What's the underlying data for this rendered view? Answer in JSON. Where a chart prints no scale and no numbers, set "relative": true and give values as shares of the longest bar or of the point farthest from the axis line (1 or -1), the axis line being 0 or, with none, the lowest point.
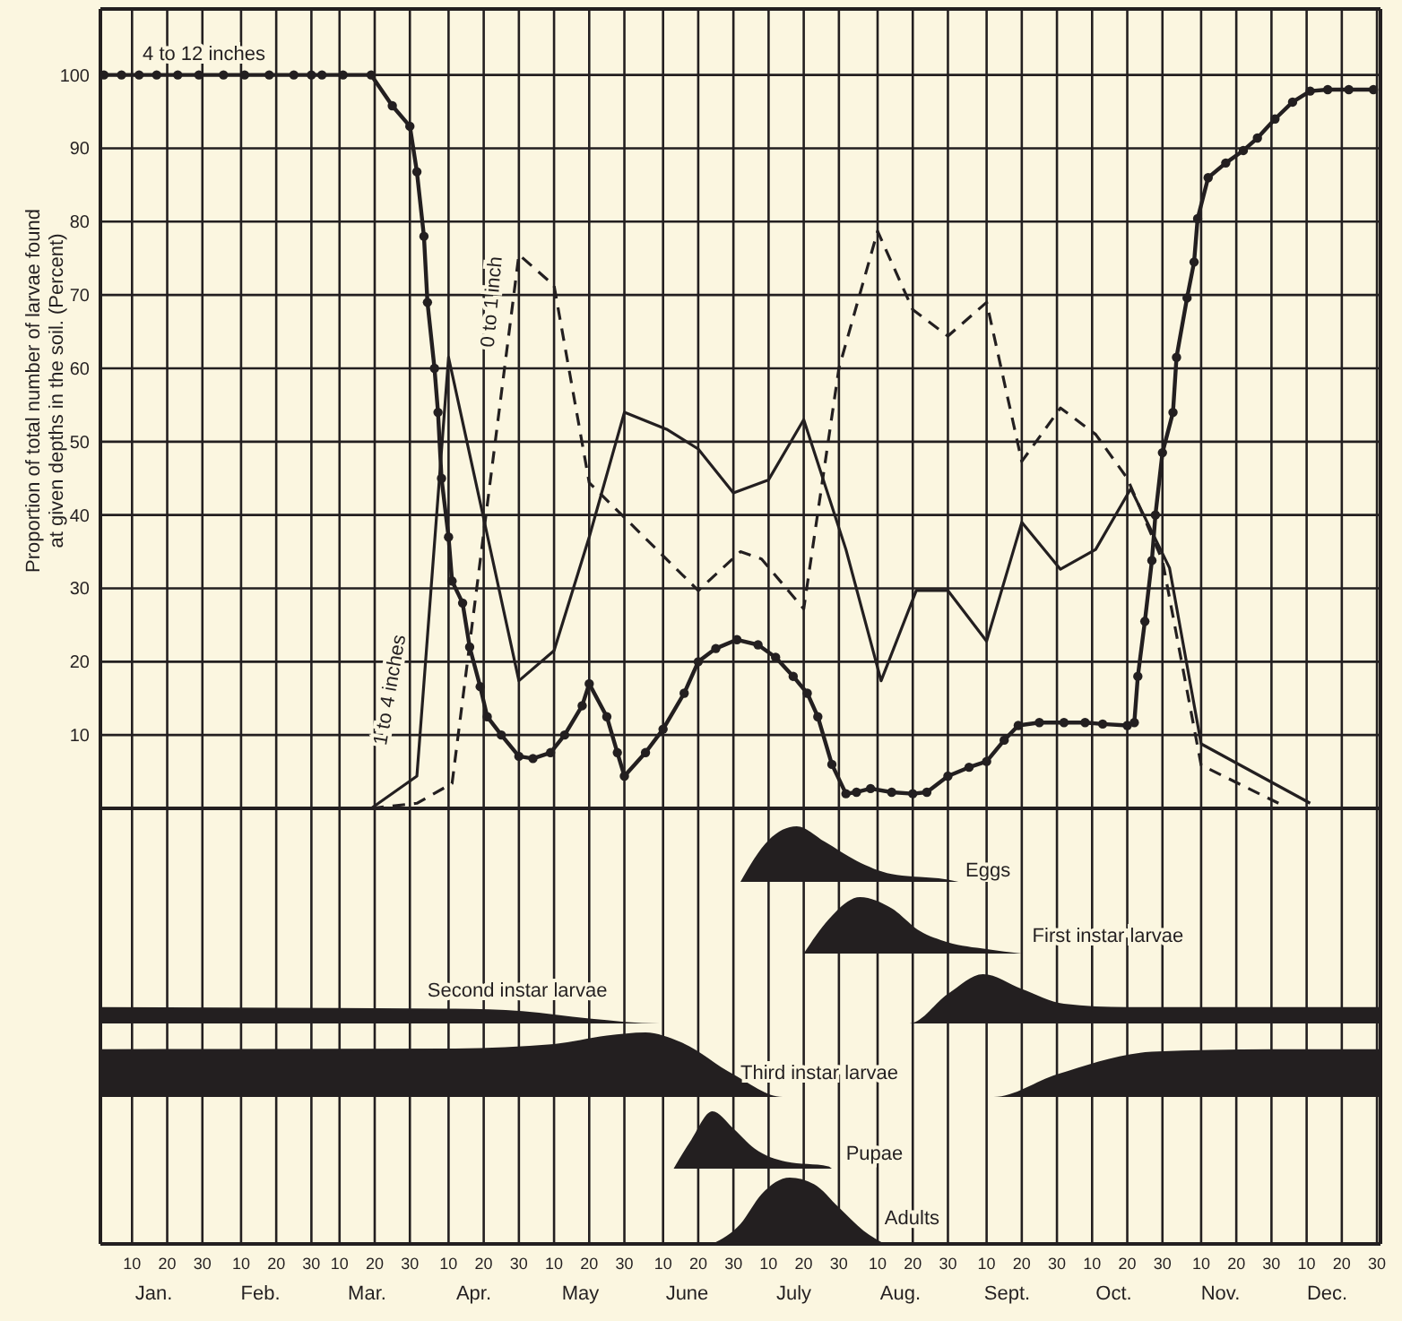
{
  "chart_data": [
    {
      "type": "line",
      "ylabel": "Proportion of total number of larvae found\nat given depths in the soil. (Percent)",
      "xlim": [
        "--01-01",
        "--12-31"
      ],
      "ylim": [
        0,
        109
      ],
      "yticks": [
        10,
        20,
        30,
        40,
        50,
        60,
        70,
        80,
        90,
        100
      ],
      "grid": true,
      "tick_labels": "y",
      "series": [
        {
          "name": "4 to 12 inches",
          "color": "#231f20",
          "marker": "circle",
          "line_style": "solid",
          "x": [
            "--01-02",
            "--01-07",
            "--01-12",
            "--01-17",
            "--01-23",
            "--01-29",
            "--02-05",
            "--02-11",
            "--02-18",
            "--02-25",
            "--03-02",
            "--03-05",
            "--03-11",
            "--03-19",
            "--03-25",
            "--03-30",
            "--04-01",
            "--04-03",
            "--04-04",
            "--04-06",
            "--04-07",
            "--04-08",
            "--04-10",
            "--04-11",
            "--04-14",
            "--04-16",
            "--04-19",
            "--04-21",
            "--04-25",
            "--04-30",
            "--05-04",
            "--05-09",
            "--05-13",
            "--05-18",
            "--05-20",
            "--05-25",
            "--05-28",
            "--05-30",
            "--06-05",
            "--06-10",
            "--06-16",
            "--06-20",
            "--06-25",
            "--07-01",
            "--07-07",
            "--07-12",
            "--07-17",
            "--07-21",
            "--07-24",
            "--07-28",
            "--08-01",
            "--08-04",
            "--08-08",
            "--08-14",
            "--08-20",
            "--08-24",
            "--08-30",
            "--09-05",
            "--09-10",
            "--09-15",
            "--09-19",
            "--09-25",
            "--10-02",
            "--10-08",
            "--10-13",
            "--10-20",
            "--10-22",
            "--10-23",
            "--10-25",
            "--10-27",
            "--10-28",
            "--10-30",
            "--11-02",
            "--11-03",
            "--11-06",
            "--11-08",
            "--11-09",
            "--11-12",
            "--11-17",
            "--11-22",
            "--11-26",
            "--12-01",
            "--12-06",
            "--12-11",
            "--12-16",
            "--12-22",
            "--12-29"
          ],
          "values": [
            100,
            100,
            100,
            100,
            100,
            100,
            100,
            100,
            100,
            100,
            100,
            100,
            100,
            100,
            95.8,
            93,
            86.8,
            78,
            69,
            60,
            54,
            45,
            37,
            31,
            28,
            22,
            16.6,
            12.5,
            10,
            7.1,
            6.8,
            7.6,
            10,
            14,
            17,
            12.5,
            7.6,
            4.4,
            7.6,
            10.8,
            15.7,
            20,
            21.8,
            23,
            22.3,
            20.6,
            18,
            15.7,
            12.5,
            6,
            2,
            2.2,
            2.7,
            2.2,
            2,
            2.2,
            4.4,
            5.6,
            6.4,
            9.3,
            11.3,
            11.7,
            11.7,
            11.7,
            11.5,
            11.3,
            11.7,
            18,
            25.5,
            33.8,
            40,
            48.5,
            54,
            61.5,
            69.6,
            74.5,
            80.4,
            86,
            88,
            89.7,
            91.4,
            94,
            96.3,
            97.8,
            98,
            98,
            98
          ]
        },
        {
          "name": "1 to 4 inches",
          "color": "#231f20",
          "marker": "none",
          "line_style": "solid",
          "x": [
            "--03-19",
            "--04-01",
            "--04-10",
            "--04-20",
            "--04-30",
            "--05-10",
            "--05-20",
            "--05-30",
            "--06-11",
            "--06-20",
            "--06-30",
            "--07-10",
            "--07-20",
            "--08-01",
            "--08-11",
            "--08-21",
            "--08-30",
            "--09-10",
            "--09-20",
            "--10-01",
            "--10-11",
            "--10-21",
            "--11-01",
            "--11-10",
            "--12-11"
          ],
          "values": [
            0,
            4.4,
            61.5,
            39.5,
            17.4,
            21.5,
            37,
            54,
            51.7,
            49,
            43,
            44.8,
            53,
            35.3,
            17.4,
            29.7,
            29.7,
            22.8,
            39,
            32.6,
            35.3,
            43.6,
            32.8,
            8.8,
            0.7
          ]
        },
        {
          "name": "0 to 1 inch",
          "color": "#231f20",
          "marker": "none",
          "line_style": "dashed",
          "x": [
            "--03-19",
            "--04-01",
            "--04-11",
            "--04-30",
            "--05-10",
            "--05-20",
            "--06-20",
            "--07-02",
            "--07-08",
            "--07-20",
            "--07-30",
            "--08-10",
            "--08-20",
            "--08-30",
            "--09-10",
            "--09-20",
            "--10-01",
            "--10-11",
            "--10-20",
            "--10-30",
            "--11-10",
            "--12-02"
          ],
          "values": [
            0,
            0.7,
            3.4,
            75.5,
            71.3,
            44.4,
            29.7,
            35,
            34,
            27.2,
            60,
            78.7,
            68,
            64.4,
            69,
            47.3,
            54.6,
            51,
            45,
            33.8,
            5.9,
            0.7
          ]
        }
      ]
    },
    {
      "type": "area",
      "relative": true,
      "xlim": [
        "--01-01",
        "--12-31"
      ],
      "tick_labels": false,
      "grid": "x",
      "series": [
        {
          "name": "Eggs",
          "color": "#231f20",
          "x": [
            "--07-02",
            "--07-10",
            "--07-18",
            "--07-26",
            "--08-04",
            "--08-14",
            "--08-30",
            "--09-02"
          ],
          "values": [
            0,
            0.75,
            1,
            0.72,
            0.38,
            0.14,
            0.04,
            0
          ]
        }
      ]
    },
    {
      "type": "area",
      "relative": true,
      "xlim": [
        "--01-01",
        "--12-31"
      ],
      "tick_labels": false,
      "grid": "x",
      "series": [
        {
          "name": "First instar larvae",
          "color": "#231f20",
          "x": [
            "--07-20",
            "--07-27",
            "--08-05",
            "--08-14",
            "--08-22",
            "--08-30",
            "--09-10",
            "--09-20"
          ],
          "values": [
            0,
            0.6,
            1,
            0.8,
            0.4,
            0.2,
            0.08,
            0
          ]
        }
      ]
    },
    {
      "type": "area",
      "relative": true,
      "xlim": [
        "--01-01",
        "--12-31"
      ],
      "tick_labels": false,
      "grid": "x",
      "series": [
        {
          "name": "Second instar larvae",
          "color": "#231f20",
          "x": [
            "--01-01",
            "--04-10",
            "--05-01",
            "--05-20",
            "--06-09",
            "--08-19",
            "--08-30",
            "--09-09",
            "--09-20",
            "--10-02",
            "--10-20",
            "--12-31"
          ],
          "values": [
            0.33,
            0.3,
            0.25,
            0.1,
            0,
            0,
            0.6,
            1,
            0.7,
            0.4,
            0.33,
            0.33
          ]
        }
      ]
    },
    {
      "type": "area",
      "relative": true,
      "xlim": [
        "--01-01",
        "--12-31"
      ],
      "tick_labels": false,
      "grid": "x",
      "series": [
        {
          "name": "Third instar larvae",
          "color": "#231f20",
          "x": [
            "--01-01",
            "--04-10",
            "--05-10",
            "--05-25",
            "--06-05",
            "--06-15",
            "--06-30",
            "--07-14",
            "--09-12",
            "--09-30",
            "--10-27",
            "--11-30",
            "--12-31"
          ],
          "values": [
            0.74,
            0.75,
            0.82,
            0.95,
            1,
            0.85,
            0.35,
            0,
            0,
            0.35,
            0.7,
            0.74,
            0.74
          ]
        }
      ]
    },
    {
      "type": "area",
      "relative": true,
      "xlim": [
        "--01-01",
        "--12-31"
      ],
      "tick_labels": false,
      "grid": "x",
      "series": [
        {
          "name": "Pupae",
          "color": "#231f20",
          "x": [
            "--06-13",
            "--06-18",
            "--06-24",
            "--06-30",
            "--07-06",
            "--07-15",
            "--07-27",
            "--07-28"
          ],
          "values": [
            0,
            0.5,
            1,
            0.7,
            0.35,
            0.12,
            0.04,
            0
          ]
        }
      ]
    },
    {
      "type": "area",
      "relative": true,
      "xlim": [
        "--01-01",
        "--12-31"
      ],
      "tick_labels": "x",
      "grid": "x",
      "xticks": [
        {
          "value": "--01-10",
          "label": "10"
        },
        {
          "value": "--01-20",
          "label": "20"
        },
        {
          "value": "--01-30",
          "label": "30"
        },
        {
          "value": "--02-10",
          "label": "10"
        },
        {
          "value": "--02-20",
          "label": "20"
        },
        {
          "value": "--03-02",
          "label": "30"
        },
        {
          "value": "--03-10",
          "label": "10"
        },
        {
          "value": "--03-20",
          "label": "20"
        },
        {
          "value": "--03-30",
          "label": "30"
        },
        {
          "value": "--04-10",
          "label": "10"
        },
        {
          "value": "--04-20",
          "label": "20"
        },
        {
          "value": "--04-30",
          "label": "30"
        },
        {
          "value": "--05-10",
          "label": "10"
        },
        {
          "value": "--05-20",
          "label": "20"
        },
        {
          "value": "--05-30",
          "label": "30"
        },
        {
          "value": "--06-10",
          "label": "10"
        },
        {
          "value": "--06-20",
          "label": "20"
        },
        {
          "value": "--06-30",
          "label": "30"
        },
        {
          "value": "--07-10",
          "label": "10"
        },
        {
          "value": "--07-20",
          "label": "20"
        },
        {
          "value": "--07-30",
          "label": "30"
        },
        {
          "value": "--08-10",
          "label": "10"
        },
        {
          "value": "--08-20",
          "label": "20"
        },
        {
          "value": "--08-30",
          "label": "30"
        },
        {
          "value": "--09-10",
          "label": "10"
        },
        {
          "value": "--09-20",
          "label": "20"
        },
        {
          "value": "--09-30",
          "label": "30"
        },
        {
          "value": "--10-10",
          "label": "10"
        },
        {
          "value": "--10-20",
          "label": "20"
        },
        {
          "value": "--10-30",
          "label": "30"
        },
        {
          "value": "--11-10",
          "label": "10"
        },
        {
          "value": "--11-20",
          "label": "20"
        },
        {
          "value": "--11-30",
          "label": "30"
        },
        {
          "value": "--12-10",
          "label": "10"
        },
        {
          "value": "--12-20",
          "label": "20"
        },
        {
          "value": "--12-30",
          "label": "30"
        }
      ],
      "annotations": [
        "Jan.",
        "Feb.",
        "Mar.",
        "Apr.",
        "May",
        "June",
        "July",
        "Aug.",
        "Sept.",
        "Oct.",
        "Nov.",
        "Dec."
      ],
      "series": [
        {
          "name": "Adults",
          "color": "#231f20",
          "x": [
            "--06-24",
            "--07-02",
            "--07-08",
            "--07-16",
            "--07-23",
            "--07-30",
            "--08-06",
            "--08-12"
          ],
          "values": [
            0,
            0.3,
            0.75,
            1,
            0.9,
            0.55,
            0.2,
            0
          ]
        }
      ]
    }
  ]
}
